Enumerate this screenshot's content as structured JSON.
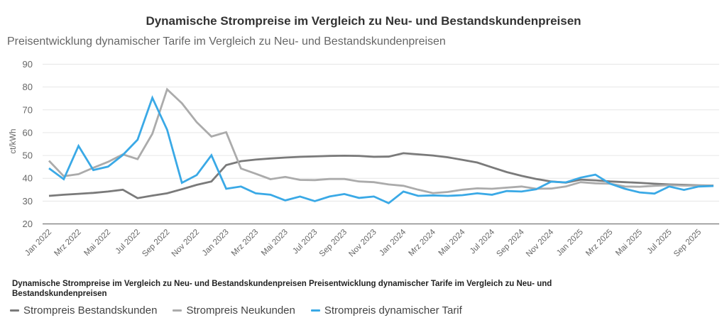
{
  "chart_data": {
    "type": "line",
    "title": "Dynamische Strompreise im Vergleich zu Neu- und Bestandskundenpreisen",
    "subtitle": "Preisentwicklung dynamischer Tarife im Vergleich zu Neu- und Bestandskundenpreisen",
    "caption": "Dynamische Strompreise im Vergleich zu Neu- und Bestandskundenpreisen Preisentwicklung dynamischer Tarife im Vergleich zu Neu- und Bestandskundenpreisen",
    "xlabel": "",
    "ylabel": "ct/kWh",
    "ylim": [
      20,
      90
    ],
    "yticks": [
      20,
      30,
      40,
      50,
      60,
      70,
      80,
      90
    ],
    "grid": true,
    "legend_position": "bottom-left",
    "x": [
      "Jan 2022",
      "Feb 2022",
      "Mrz 2022",
      "Apr 2022",
      "Mai 2022",
      "Jun 2022",
      "Jul 2022",
      "Aug 2022",
      "Sep 2022",
      "Okt 2022",
      "Nov 2022",
      "Dez 2022",
      "Jan 2023",
      "Feb 2023",
      "Mrz 2023",
      "Apr 2023",
      "Mai 2023",
      "Jun 2023",
      "Jul 2023",
      "Aug 2023",
      "Sep 2023",
      "Okt 2023",
      "Nov 2023",
      "Dez 2023",
      "Jan 2024",
      "Feb 2024",
      "Mrz 2024",
      "Apr 2024",
      "Mai 2024",
      "Jun 2024",
      "Jul 2024",
      "Aug 2024",
      "Sep 2024",
      "Okt 2024",
      "Nov 2024",
      "Dez 2024",
      "Jan 2025",
      "Feb 2025",
      "Mrz 2025",
      "Apr 2025",
      "Mai 2025",
      "Jun 2025",
      "Jul 2025",
      "Aug 2025",
      "Sep 2025",
      "Okt 2025"
    ],
    "xtick_labels": [
      "Jan 2022",
      "Mrz 2022",
      "Mai 2022",
      "Jul 2022",
      "Sep 2022",
      "Nov 2022",
      "Jan 2023",
      "Mrz 2023",
      "Mai 2023",
      "Jul 2023",
      "Sep 2023",
      "Nov 2023",
      "Jan 2024",
      "Mrz 2024",
      "Mai 2024",
      "Jul 2024",
      "Sep 2024",
      "Nov 2024",
      "Jan 2025",
      "Mrz 2025",
      "Mai 2025",
      "Jul 2025",
      "Sep 2025"
    ],
    "series": [
      {
        "name": "Strompreis Bestandskunden",
        "color": "#7a7a7a",
        "values": [
          32.3,
          32.8,
          33.2,
          33.6,
          34.2,
          35.0,
          31.3,
          32.4,
          33.4,
          35.2,
          37.1,
          38.6,
          45.8,
          47.5,
          48.2,
          48.7,
          49.1,
          49.4,
          49.6,
          49.8,
          49.9,
          49.8,
          49.4,
          49.5,
          51.0,
          50.5,
          50.0,
          49.2,
          48.1,
          46.9,
          44.8,
          42.7,
          41.1,
          39.7,
          38.6,
          38.1,
          39.4,
          39.1,
          38.6,
          38.3,
          38.0,
          37.6,
          37.3,
          37.1,
          36.9,
          36.8
        ]
      },
      {
        "name": "Strompreis Neukunden",
        "color": "#ababab",
        "values": [
          47.7,
          40.9,
          41.8,
          44.6,
          47.2,
          50.5,
          48.4,
          59.5,
          79.0,
          72.9,
          64.6,
          58.3,
          60.2,
          44.3,
          42.0,
          39.6,
          40.6,
          39.3,
          39.2,
          39.7,
          39.7,
          38.6,
          38.3,
          37.3,
          36.7,
          35.0,
          33.5,
          34.0,
          35.0,
          35.6,
          35.4,
          35.9,
          36.4,
          35.4,
          35.5,
          36.4,
          38.3,
          37.8,
          37.6,
          36.4,
          36.3,
          36.7,
          37.0,
          36.8,
          36.8,
          36.7
        ]
      },
      {
        "name": "Strompreis dynamischer Tarif",
        "color": "#3aa9e6",
        "values": [
          44.4,
          39.6,
          54.2,
          43.6,
          45.1,
          50.2,
          56.9,
          75.3,
          61.3,
          38.0,
          41.4,
          50.1,
          35.4,
          36.4,
          33.4,
          32.8,
          30.3,
          32.0,
          30.0,
          32.0,
          33.1,
          31.4,
          32.0,
          29.1,
          34.2,
          32.3,
          32.5,
          32.3,
          32.6,
          33.4,
          32.8,
          34.4,
          34.2,
          35.2,
          38.5,
          38.2,
          40.3,
          41.6,
          37.6,
          35.4,
          33.8,
          33.3,
          36.4,
          34.9,
          36.4,
          36.6
        ]
      }
    ]
  }
}
